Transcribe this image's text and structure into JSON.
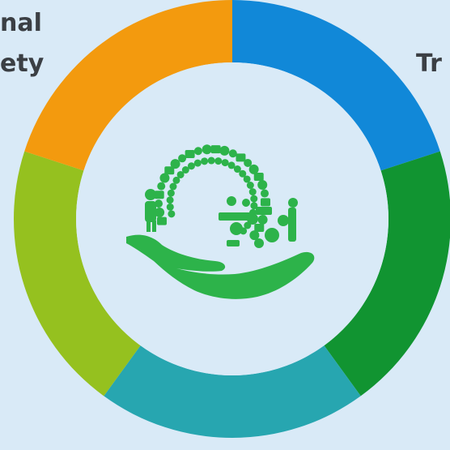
{
  "labels": {
    "top_left_line1": "nal",
    "top_left_line2": "ety",
    "top_right": "Tr"
  },
  "ring": {
    "segments": [
      {
        "color": "#1188d8"
      },
      {
        "color": "#119431"
      },
      {
        "color": "#27a6b0"
      },
      {
        "color": "#95c11f"
      },
      {
        "color": "#f39a0e"
      }
    ],
    "inner_fill": "#d9eaf7"
  },
  "logo": {
    "icon": "hand-holding-g-agriculture-icon",
    "color": "#2db34a"
  }
}
